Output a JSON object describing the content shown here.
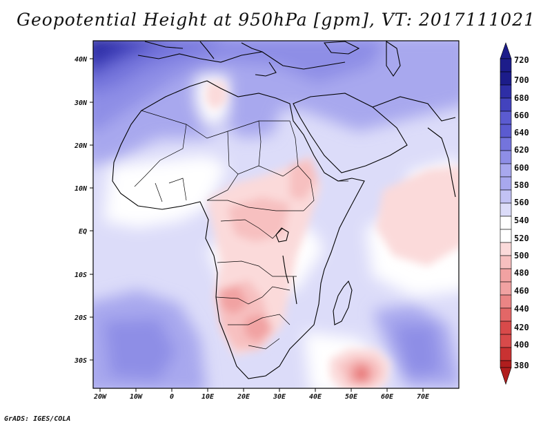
{
  "title": "Geopotential Height at 950hPa [gpm], VT: 2017111021",
  "footer": "GrADS: IGES/COLA",
  "map": {
    "region": "Africa and western Indian Ocean",
    "longitude_ticks": [
      "20W",
      "10W",
      "0",
      "10E",
      "20E",
      "30E",
      "40E",
      "50E",
      "60E",
      "70E"
    ],
    "latitude_ticks": [
      "40N",
      "30N",
      "20N",
      "10N",
      "EQ",
      "10S",
      "20S",
      "30S"
    ]
  },
  "legend": {
    "levels": [
      "720",
      "700",
      "680",
      "660",
      "640",
      "620",
      "600",
      "580",
      "560",
      "540",
      "520",
      "500",
      "480",
      "460",
      "440",
      "420",
      "400",
      "380"
    ],
    "colors": [
      "#1c1c8a",
      "#2e2ea6",
      "#4343bd",
      "#5b5bd0",
      "#7474dc",
      "#8e8ee6",
      "#a8a8ee",
      "#c2c2f4",
      "#dcdcf9",
      "#ffffff",
      "#fbdada",
      "#f7c0c0",
      "#f1a2a2",
      "#eb8585",
      "#e36767",
      "#d84a4a",
      "#c93232",
      "#b01e1e"
    ]
  }
}
